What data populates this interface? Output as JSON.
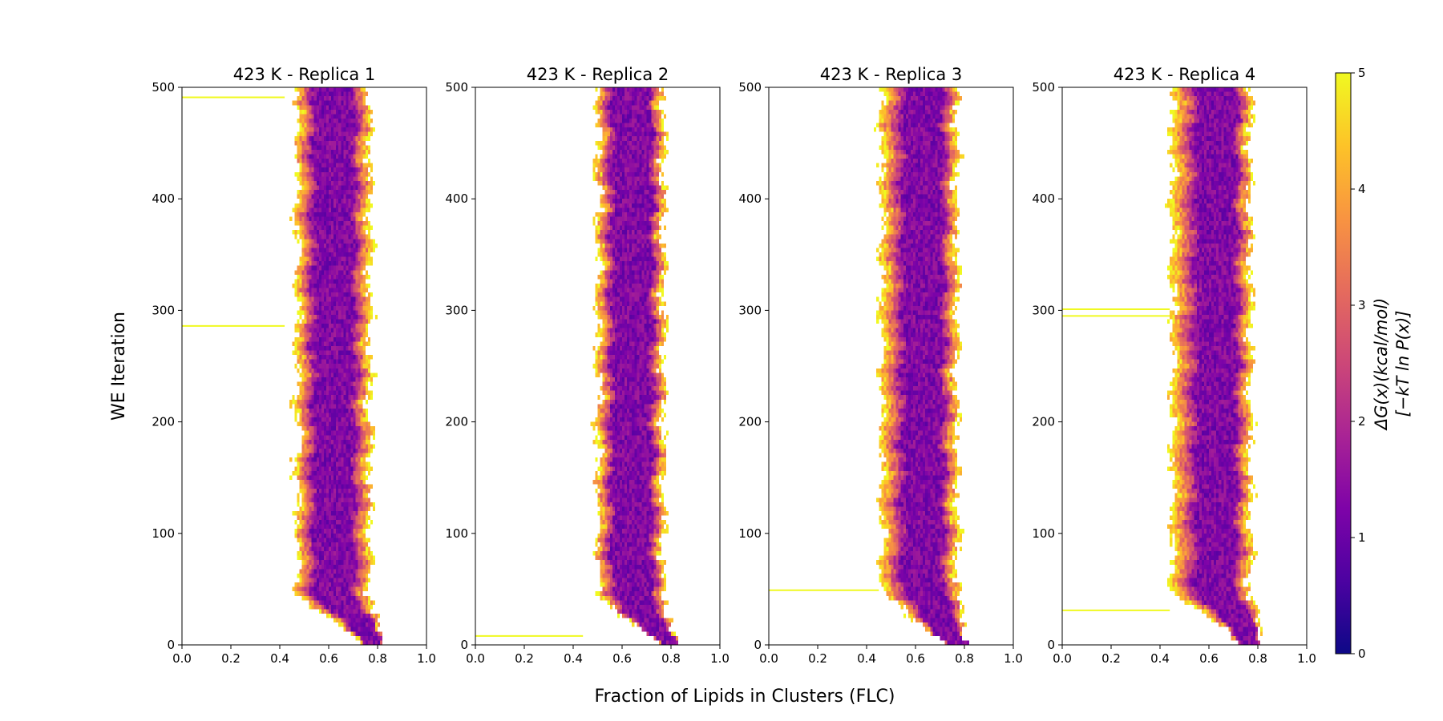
{
  "chart_data": {
    "type": "heatmap",
    "colormap": "plasma",
    "xlabel": "Fraction of Lipids in Clusters (FLC)",
    "ylabel": "WE Iteration",
    "xlim": [
      0.0,
      1.0
    ],
    "ylim": [
      0,
      500
    ],
    "xticks": [
      "0.0",
      "0.2",
      "0.4",
      "0.6",
      "0.8",
      "1.0"
    ],
    "yticks": [
      "0",
      "100",
      "200",
      "300",
      "400",
      "500"
    ],
    "colorbar": {
      "label_line1": "ΔG(x)(kcal/mol)",
      "label_line2": "[−kT ln P(x)]",
      "range": [
        0,
        5
      ],
      "ticks": [
        "0",
        "1",
        "2",
        "3",
        "4",
        "5"
      ]
    },
    "panels": [
      {
        "title": "423 K - Replica 1",
        "band_low": 0.47,
        "band_high": 0.77,
        "core_low": 0.54,
        "core_high": 0.7,
        "start_low": 0.73,
        "start_high": 0.82,
        "stray_lines": [
          {
            "iteration": 491,
            "flc_max": 0.42
          },
          {
            "iteration": 286,
            "flc_max": 0.42
          }
        ]
      },
      {
        "title": "423 K - Replica 2",
        "band_low": 0.5,
        "band_high": 0.77,
        "core_low": 0.56,
        "core_high": 0.72,
        "start_low": 0.73,
        "start_high": 0.82,
        "stray_lines": [
          {
            "iteration": 8,
            "flc_max": 0.44
          }
        ]
      },
      {
        "title": "423 K - Replica 3",
        "band_low": 0.46,
        "band_high": 0.77,
        "core_low": 0.55,
        "core_high": 0.71,
        "start_low": 0.72,
        "start_high": 0.82,
        "stray_lines": [
          {
            "iteration": 49,
            "flc_max": 0.45
          }
        ]
      },
      {
        "title": "423 K - Replica 4",
        "band_low": 0.45,
        "band_high": 0.77,
        "core_low": 0.55,
        "core_high": 0.71,
        "start_low": 0.73,
        "start_high": 0.82,
        "stray_lines": [
          {
            "iteration": 301,
            "flc_max": 0.44
          },
          {
            "iteration": 295,
            "flc_max": 0.44
          },
          {
            "iteration": 31,
            "flc_max": 0.44
          }
        ]
      }
    ]
  }
}
